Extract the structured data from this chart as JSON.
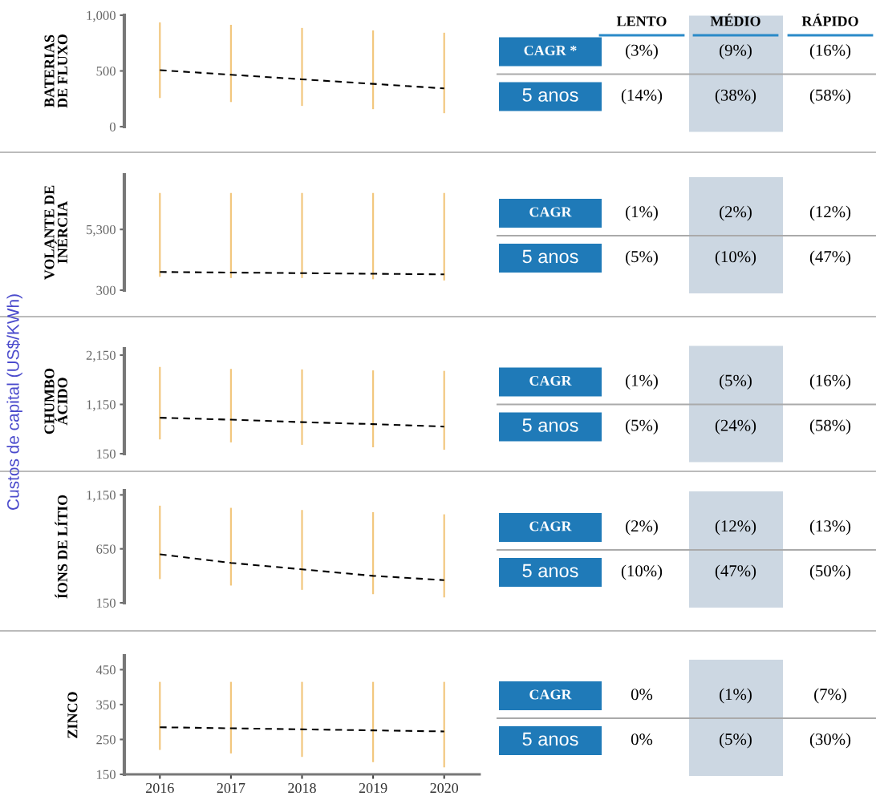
{
  "chart_data": [
    {
      "type": "bar",
      "ylabel": "BATERIAS\nDE FLUXO",
      "annotations": [
        "Custos de capital (US$/KWh)"
      ],
      "x": [
        2016,
        2017,
        2018,
        2019,
        2020
      ],
      "xticks": [
        2016,
        2017,
        2018,
        2019,
        2020
      ],
      "ylim": [
        0,
        1000
      ],
      "yticks": [
        0,
        500,
        {
          "value": 1000,
          "label": "1,000"
        }
      ],
      "tick_labels": "y",
      "series": [
        {
          "type": "bar",
          "color": "#f2c77e",
          "base": [
            257,
            221,
            186,
            157,
            121
          ],
          "values": [
            679,
            693,
            700,
            707,
            722
          ]
        },
        {
          "type": "line",
          "color": "#000000",
          "line_style": "dashed",
          "values": [
            507,
            466,
            425,
            384,
            343
          ]
        }
      ]
    },
    {
      "type": "bar",
      "ylabel": "VOLANTE DE\nINÉRCIA",
      "x": [
        2016,
        2017,
        2018,
        2019,
        2020
      ],
      "xticks": [
        2016,
        2017,
        2018,
        2019,
        2020
      ],
      "ylim": [
        300,
        9800
      ],
      "yticks": [
        300,
        {
          "value": 5300,
          "label": "5,300"
        }
      ],
      "tick_labels": "y",
      "series": [
        {
          "type": "bar",
          "color": "#f2c77e",
          "base": [
            1400,
            1300,
            1300,
            1200,
            1100
          ],
          "values": [
            6900,
            7000,
            7000,
            7100,
            7200
          ]
        },
        {
          "type": "line",
          "color": "#000000",
          "line_style": "dashed",
          "values": [
            1800,
            1750,
            1700,
            1650,
            1600
          ]
        }
      ]
    },
    {
      "type": "bar",
      "ylabel": "CHUMBO\nÁCIDO",
      "x": [
        2016,
        2017,
        2018,
        2019,
        2020
      ],
      "xticks": [
        2016,
        2017,
        2018,
        2019,
        2020
      ],
      "ylim": [
        150,
        2280
      ],
      "yticks": [
        150,
        {
          "value": 1150,
          "label": "1,150"
        },
        {
          "value": 2150,
          "label": "2,150"
        }
      ],
      "tick_labels": "y",
      "series": [
        {
          "type": "bar",
          "color": "#f2c77e",
          "base": [
            440,
            380,
            330,
            280,
            230
          ],
          "values": [
            1470,
            1490,
            1530,
            1560,
            1600
          ]
        },
        {
          "type": "line",
          "color": "#000000",
          "line_style": "dashed",
          "values": [
            880,
            840,
            790,
            750,
            700
          ]
        }
      ]
    },
    {
      "type": "bar",
      "ylabel": "ÍONS DE LÍTIO",
      "x": [
        2016,
        2017,
        2018,
        2019,
        2020
      ],
      "xticks": [
        2016,
        2017,
        2018,
        2019,
        2020
      ],
      "ylim": [
        150,
        1190
      ],
      "yticks": [
        150,
        650,
        {
          "value": 1150,
          "label": "1,150"
        }
      ],
      "tick_labels": "y",
      "series": [
        {
          "type": "bar",
          "color": "#f2c77e",
          "base": [
            370,
            310,
            270,
            230,
            200
          ],
          "values": [
            680,
            720,
            740,
            760,
            770
          ]
        },
        {
          "type": "line",
          "color": "#000000",
          "line_style": "dashed",
          "values": [
            600,
            520,
            460,
            400,
            360
          ]
        }
      ]
    },
    {
      "type": "bar",
      "ylabel": "ZINCO",
      "x": [
        2016,
        2017,
        2018,
        2019,
        2020
      ],
      "xlim": [
        2015.5,
        2020.5
      ],
      "ylim": [
        150,
        490
      ],
      "yticks": [
        150,
        250,
        350,
        450
      ],
      "xticks": [
        2016,
        2017,
        2018,
        2019,
        2020
      ],
      "series": [
        {
          "type": "bar",
          "color": "#f2c77e",
          "base": [
            220,
            210,
            200,
            185,
            170
          ],
          "values": [
            195,
            205,
            215,
            230,
            245
          ]
        },
        {
          "type": "line",
          "color": "#000000",
          "line_style": "dashed",
          "values": [
            285,
            282,
            279,
            276,
            273
          ]
        }
      ]
    },
    {
      "type": "other",
      "categories": [
        "LENTO",
        "MÉDIO",
        "RÁPIDO"
      ],
      "y_categories": [
        "CAGR *",
        "5 anos",
        "CAGR",
        "5 anos",
        "CAGR",
        "5 anos",
        "CAGR",
        "5 anos",
        "CAGR",
        "5 anos"
      ],
      "cell_labels": [
        [
          "(3%)",
          "(9%)",
          "(16%)"
        ],
        [
          "(14%)",
          "(38%)",
          "(58%)"
        ],
        [
          "(1%)",
          "(2%)",
          "(12%)"
        ],
        [
          "(5%)",
          "(10%)",
          "(47%)"
        ],
        [
          "(1%)",
          "(5%)",
          "(16%)"
        ],
        [
          "(5%)",
          "(24%)",
          "(58%)"
        ],
        [
          "(2%)",
          "(12%)",
          "(13%)"
        ],
        [
          "(10%)",
          "(47%)",
          "(50%)"
        ],
        [
          "0%",
          "(1%)",
          "(7%)"
        ],
        [
          "0%",
          "(5%)",
          "(30%)"
        ]
      ]
    }
  ]
}
